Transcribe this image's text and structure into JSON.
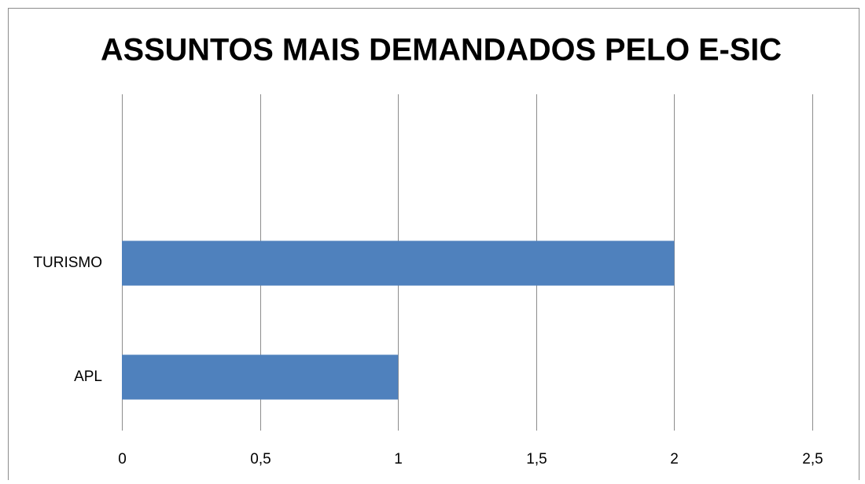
{
  "chart_data": {
    "type": "barh",
    "title": "ASSUNTOS MAIS DEMANDADOS PELO E-SIC",
    "categories": [
      "APL",
      "TURISMO"
    ],
    "values": [
      1,
      2
    ],
    "color": "#4f81bd",
    "xlim": [
      0,
      2.5
    ],
    "xticks": [
      0,
      {
        "value": 0.5,
        "label": "0,5"
      },
      1,
      {
        "value": 1.5,
        "label": "1,5"
      },
      2,
      {
        "value": 2.5,
        "label": "2,5"
      }
    ],
    "grid": true
  }
}
